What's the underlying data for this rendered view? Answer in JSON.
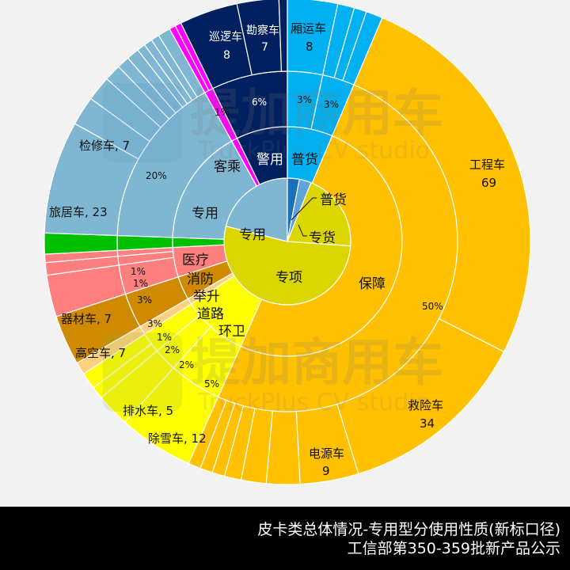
{
  "chart_data": {
    "type": "sunburst",
    "title": "皮卡类总体情况-专用型分使用性质(新标口径)",
    "subtitle": "工信部第350-359批新产品公示",
    "center": [
      363,
      305
    ],
    "radii": {
      "inner": 80,
      "middle": 145,
      "outer_pct": 215,
      "outer": 307
    },
    "inner_ring": [
      {
        "name": "专用",
        "color": "#7fb6d1",
        "start": -90,
        "end": 87
      },
      {
        "name": "专项",
        "color": "#dcd600",
        "start": 87,
        "end": 285
      },
      {
        "name": "专货",
        "color": "#5fa3d6",
        "start": 285,
        "end": 290
      },
      {
        "name": "普货",
        "color": "#1a6fb8",
        "start": 290,
        "end": 294
      }
    ],
    "middle_ring": [
      {
        "name": "客乘",
        "color": "#7fb6d1",
        "start": -90,
        "end": 72
      },
      {
        "name": "警用",
        "color": "#002060",
        "start": 72,
        "end": 95
      },
      {
        "name": "普货",
        "color": "#00b0f0",
        "start": 95,
        "end": 114
      },
      {
        "name": "保障",
        "color": "#ffc000",
        "start": 114,
        "end": 285
      },
      {
        "name": "环卫",
        "color": "#ffff00",
        "start": 285,
        "end": 288
      },
      {
        "name": "道路",
        "color": "#ffd080",
        "start": 288,
        "end": 290
      },
      {
        "name": "举升",
        "color": "#d08a00",
        "start": 290,
        "end": 292
      },
      {
        "name": "消防",
        "color": "#ff7f7f",
        "start": 292,
        "end": 296
      },
      {
        "name": "医疗",
        "color": "#00c000",
        "start": 296,
        "end": 298
      }
    ],
    "percent_labels": [
      {
        "text": "20%",
        "angle": 222
      },
      {
        "text": "1%",
        "angle": 283
      },
      {
        "text": "6%",
        "angle": 295
      },
      {
        "text": "3%",
        "angle": 309
      },
      {
        "text": "3%",
        "angle": 322
      },
      {
        "text": "50%",
        "angle": 40
      },
      {
        "text": "5%",
        "angle": 128
      },
      {
        "text": "2%",
        "angle": 139
      },
      {
        "text": "2%",
        "angle": 145
      },
      {
        "text": "1%",
        "angle": 151
      },
      {
        "text": "3%",
        "angle": 156
      },
      {
        "text": "3%",
        "angle": 163
      },
      {
        "text": "1%",
        "angle": 169
      },
      {
        "text": "1%",
        "angle": 173
      }
    ],
    "outer_labels": [
      {
        "name": "巡逻车",
        "value": 8
      },
      {
        "name": "勘察车",
        "value": 7
      },
      {
        "name": "厢运车",
        "value": 8
      },
      {
        "name": "工程车",
        "value": 69
      },
      {
        "name": "救险车",
        "value": 34
      },
      {
        "name": "电源车",
        "value": 9
      },
      {
        "name": "除雪车",
        "value": 12
      },
      {
        "name": "排水车",
        "value": 5
      },
      {
        "name": "高空车",
        "value": 7
      },
      {
        "name": "器材车",
        "value": 7
      },
      {
        "name": "旅居车",
        "value": 23
      },
      {
        "name": "检修车",
        "value": 7
      }
    ],
    "watermark": [
      "提加商用车",
      "TruckPlus CV studio"
    ]
  },
  "footer": {
    "line1": "皮卡类总体情况-专用型分使用性质(新标口径)",
    "line2": "工信部第350-359批新产品公示"
  },
  "labels": {
    "inner": {
      "zhuanyong": "专用",
      "zhuanxiang": "专项",
      "zhuanhuo": "专货",
      "puhuo": "普货"
    },
    "middle": {
      "kecheng": "客乘",
      "zhuanyong2": "专用",
      "jingyong": "警用",
      "puhuo": "普货",
      "baozhang": "保障",
      "huanwei": "环卫",
      "daolu": "道路",
      "jusheng": "举升",
      "xiaofang": "消防",
      "yiliao": "医疗"
    },
    "outer": {
      "xunluo": "巡逻车",
      "xunluo_v": "8",
      "kancha": "勘察车",
      "kancha_v": "7",
      "xiangyun": "厢运车",
      "xiangyun_v": "8",
      "gongcheng": "工程车",
      "gongcheng_v": "69",
      "jiuxian": "救险车",
      "jiuxian_v": "34",
      "dianyuan": "电源车",
      "dianyuan_v": "9",
      "chuxue": "除雪车, 12",
      "paishui": "排水车, 5",
      "gaokong": "高空车, 7",
      "qicai": "器材车, 7",
      "lvju": "旅居车, 23",
      "jianxiu": "检修车, 7"
    },
    "pct": {
      "p20": "20%",
      "p1a": "1%",
      "p6": "6%",
      "p3a": "3%",
      "p3b": "3%",
      "p50": "50%",
      "p5": "5%",
      "p2a": "2%",
      "p2b": "2%",
      "p1b": "1%",
      "p3c": "3%",
      "p3d": "3%",
      "p1c": "1%",
      "p1d": "1%"
    },
    "watermark1": "提加商用车",
    "watermark2": "TruckPlus CV studio"
  }
}
